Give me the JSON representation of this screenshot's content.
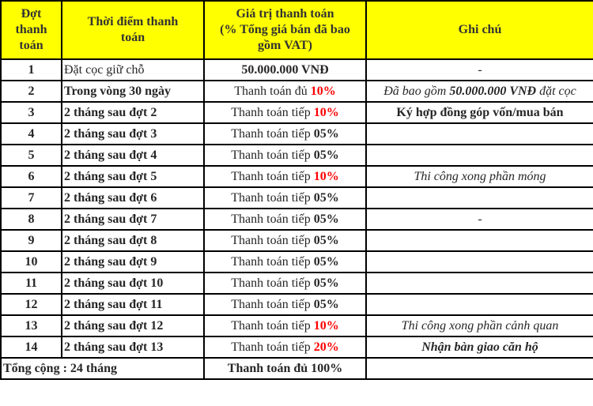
{
  "colors": {
    "header_bg": "#FFFF00",
    "header_text": "#333333",
    "body_text": "#262626",
    "accent_red": "#FF0000",
    "border": "#000000"
  },
  "table": {
    "headers": [
      {
        "label": "Đợt\nthanh\ntoán"
      },
      {
        "label": "Thời điểm thanh\ntoán"
      },
      {
        "label": "Giá trị thanh toán\n(% Tổng giá bán đã bao\ngồm VAT)"
      },
      {
        "label": "Ghi chú"
      }
    ],
    "rows": [
      {
        "stage": "1",
        "time": "Đặt cọc giữ chỗ",
        "time_bold": false,
        "value": [
          {
            "text": "50.000.000 VNĐ",
            "bold": true
          }
        ],
        "note": [
          {
            "text": "-"
          }
        ]
      },
      {
        "stage": "2",
        "time": "Trong vòng 30 ngày",
        "time_bold": true,
        "value": [
          {
            "text": "Thanh toán đủ "
          },
          {
            "text": "10%",
            "bold": true,
            "red": true
          }
        ],
        "note": [
          {
            "text": "Đã bao gồm ",
            "italic": true
          },
          {
            "text": "50.000.000 VNĐ",
            "bold": true,
            "italic": true
          },
          {
            "text": " đặt cọc",
            "italic": true
          }
        ]
      },
      {
        "stage": "3",
        "time": "2 tháng sau đợt 2",
        "time_bold": true,
        "value": [
          {
            "text": "Thanh toán tiếp "
          },
          {
            "text": "10%",
            "bold": true,
            "red": true
          }
        ],
        "note": [
          {
            "text": "Ký hợp đồng góp vốn/mua bán",
            "bold": true
          }
        ]
      },
      {
        "stage": "4",
        "time": "2 tháng sau đợt 3",
        "time_bold": true,
        "value": [
          {
            "text": "Thanh toán tiếp "
          },
          {
            "text": "05%",
            "bold": true
          }
        ],
        "note": []
      },
      {
        "stage": "5",
        "time": "2 tháng sau đợt 4",
        "time_bold": true,
        "value": [
          {
            "text": "Thanh toán tiếp "
          },
          {
            "text": "05%",
            "bold": true
          }
        ],
        "note": []
      },
      {
        "stage": "6",
        "time": "2 tháng sau đợt 5",
        "time_bold": true,
        "value": [
          {
            "text": "Thanh toán tiếp "
          },
          {
            "text": "10%",
            "bold": true,
            "red": true
          }
        ],
        "note": [
          {
            "text": "Thi công xong phần móng",
            "italic": true
          }
        ]
      },
      {
        "stage": "7",
        "time": "2 tháng sau đợt 6",
        "time_bold": true,
        "value": [
          {
            "text": "Thanh toán tiếp "
          },
          {
            "text": "05%",
            "bold": true
          }
        ],
        "note": []
      },
      {
        "stage": "8",
        "time": "2 tháng sau đợt 7",
        "time_bold": true,
        "value": [
          {
            "text": "Thanh toán tiếp "
          },
          {
            "text": "05%",
            "bold": true
          }
        ],
        "note": [
          {
            "text": "-"
          }
        ]
      },
      {
        "stage": "9",
        "time": "2 tháng sau đợt 8",
        "time_bold": true,
        "value": [
          {
            "text": "Thanh toán tiếp "
          },
          {
            "text": "05%",
            "bold": true
          }
        ],
        "note": []
      },
      {
        "stage": "10",
        "time": "2 tháng sau đợt 9",
        "time_bold": true,
        "value": [
          {
            "text": "Thanh toán tiếp "
          },
          {
            "text": "05%",
            "bold": true
          }
        ],
        "note": []
      },
      {
        "stage": "11",
        "time": "2 tháng sau đợt 10",
        "time_bold": true,
        "value": [
          {
            "text": "Thanh toán tiếp "
          },
          {
            "text": "05%",
            "bold": true
          }
        ],
        "note": []
      },
      {
        "stage": "12",
        "time": "2 tháng sau đợt 11",
        "time_bold": true,
        "value": [
          {
            "text": "Thanh toán tiếp "
          },
          {
            "text": "05%",
            "bold": true
          }
        ],
        "note": []
      },
      {
        "stage": "13",
        "time": "2 tháng sau đợt 12",
        "time_bold": true,
        "value": [
          {
            "text": "Thanh toán tiếp "
          },
          {
            "text": "10%",
            "bold": true,
            "red": true
          }
        ],
        "note": [
          {
            "text": "Thi công xong phần cảnh quan",
            "italic": true
          }
        ]
      },
      {
        "stage": "14",
        "time": "2 tháng sau đợt 13",
        "time_bold": true,
        "value": [
          {
            "text": "Thanh toán tiếp "
          },
          {
            "text": "20%",
            "bold": true,
            "red": true
          }
        ],
        "note": [
          {
            "text": "Nhận bàn giao căn hộ",
            "bold": true,
            "italic": true
          }
        ]
      }
    ],
    "footer": {
      "label": "Tổng cộng : 24 tháng",
      "value": [
        {
          "text": "Thanh toán đủ 100%",
          "bold": true
        }
      ],
      "note": []
    }
  }
}
